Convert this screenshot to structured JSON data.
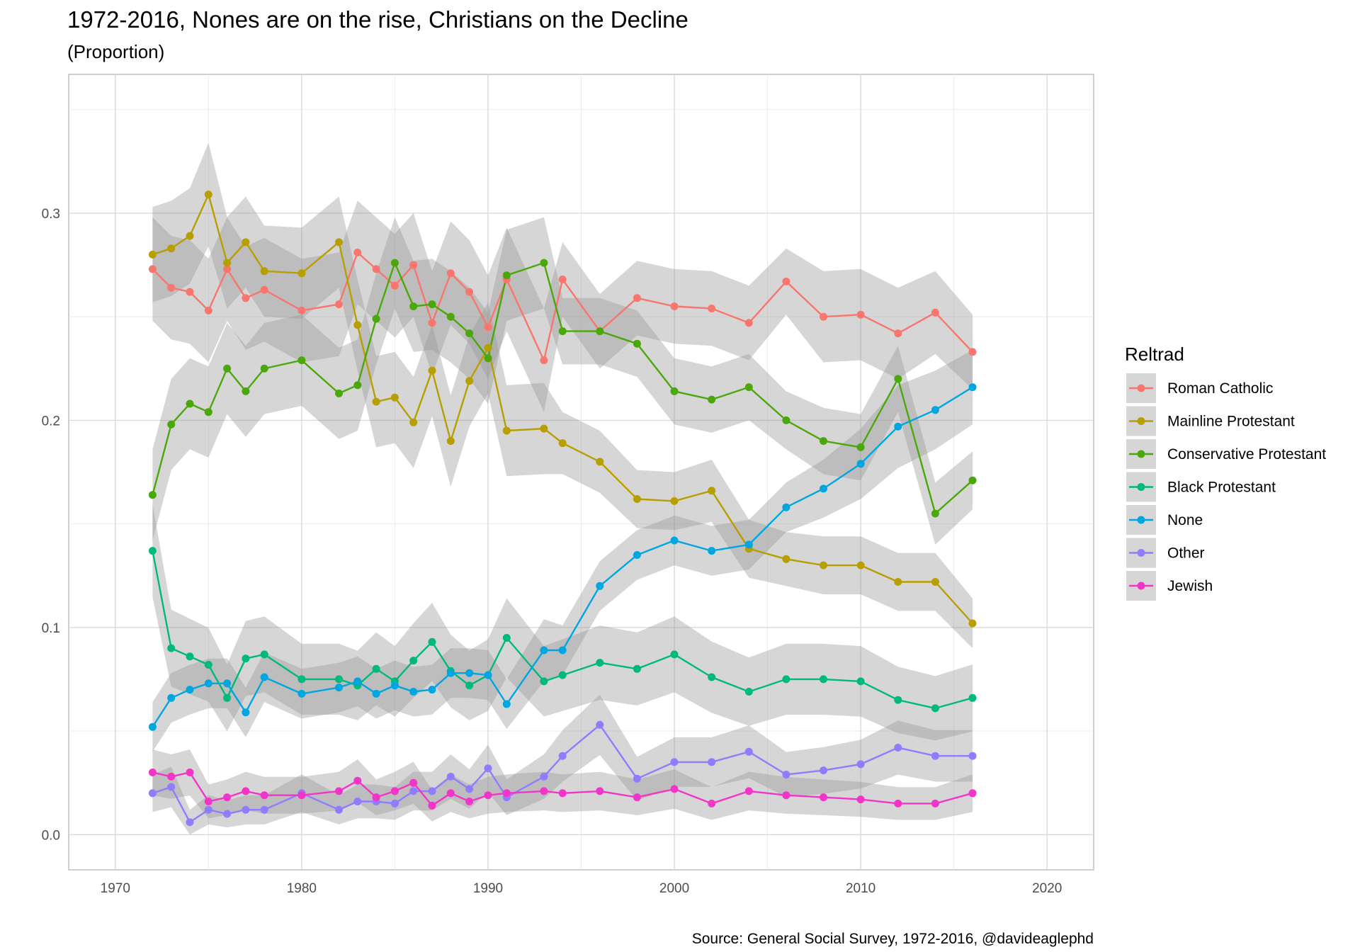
{
  "chart_data": {
    "type": "line",
    "title": "1972-2016, Nones are on the rise, Christians on the Decline",
    "subtitle": "(Proportion)",
    "caption": "Source: General Social Survey, 1972-2016, @davideaglephd",
    "xlabel": "",
    "ylabel": "",
    "xlim": [
      1967.5,
      2022.5
    ],
    "ylim": [
      -0.017,
      0.367
    ],
    "x_ticks": [
      1970,
      1980,
      1990,
      2000,
      2010,
      2020
    ],
    "y_ticks": [
      0.0,
      0.1,
      0.2,
      0.3
    ],
    "x_tick_labels": [
      "1970",
      "1980",
      "1990",
      "2000",
      "2010",
      "2020"
    ],
    "y_tick_labels": [
      "0.0",
      "0.1",
      "0.2",
      "0.3"
    ],
    "grid": true,
    "confidence_band": true,
    "legend_title": "Reltrad",
    "legend_position": "right",
    "x": [
      1972,
      1973,
      1974,
      1975,
      1976,
      1977,
      1978,
      1980,
      1982,
      1983,
      1984,
      1985,
      1986,
      1987,
      1988,
      1989,
      1990,
      1991,
      1993,
      1994,
      1996,
      1998,
      2000,
      2002,
      2004,
      2006,
      2008,
      2010,
      2012,
      2014,
      2016
    ],
    "series": [
      {
        "name": "Roman Catholic",
        "color": "#F8766D",
        "values": [
          0.273,
          0.264,
          0.262,
          0.253,
          0.273,
          0.259,
          0.263,
          0.253,
          0.256,
          0.281,
          0.273,
          0.265,
          0.275,
          0.247,
          0.271,
          0.262,
          0.245,
          0.268,
          0.229,
          0.268,
          0.243,
          0.259,
          0.255,
          0.254,
          0.247,
          0.267,
          0.25,
          0.251,
          0.242,
          0.252,
          0.233
        ],
        "band": [
          0.025,
          0.025,
          0.025,
          0.025,
          0.025,
          0.025,
          0.025,
          0.025,
          0.025,
          0.025,
          0.025,
          0.025,
          0.025,
          0.025,
          0.025,
          0.025,
          0.025,
          0.025,
          0.025,
          0.018,
          0.018,
          0.018,
          0.018,
          0.018,
          0.018,
          0.016,
          0.022,
          0.022,
          0.022,
          0.02,
          0.018
        ]
      },
      {
        "name": "Mainline Protestant",
        "color": "#B79F00",
        "values": [
          0.28,
          0.283,
          0.289,
          0.309,
          0.276,
          0.286,
          0.272,
          0.271,
          0.286,
          0.246,
          0.209,
          0.211,
          0.199,
          0.224,
          0.19,
          0.219,
          0.235,
          0.195,
          0.196,
          0.189,
          0.18,
          0.162,
          0.161,
          0.166,
          0.138,
          0.133,
          0.13,
          0.13,
          0.122,
          0.122,
          0.102
        ],
        "band": [
          0.023,
          0.023,
          0.023,
          0.025,
          0.022,
          0.022,
          0.022,
          0.022,
          0.022,
          0.022,
          0.022,
          0.022,
          0.022,
          0.022,
          0.022,
          0.022,
          0.022,
          0.022,
          0.022,
          0.015,
          0.015,
          0.014,
          0.014,
          0.015,
          0.014,
          0.013,
          0.014,
          0.014,
          0.014,
          0.014,
          0.012
        ]
      },
      {
        "name": "Conservative Protestant",
        "color": "#4BA80B",
        "values": [
          0.164,
          0.198,
          0.208,
          0.204,
          0.225,
          0.214,
          0.225,
          0.229,
          0.213,
          0.217,
          0.249,
          0.276,
          0.255,
          0.256,
          0.25,
          0.242,
          0.23,
          0.27,
          0.276,
          0.243,
          0.243,
          0.237,
          0.214,
          0.21,
          0.216,
          0.2,
          0.19,
          0.187,
          0.22,
          0.155,
          0.171
        ],
        "band": [
          0.022,
          0.022,
          0.022,
          0.022,
          0.022,
          0.022,
          0.022,
          0.022,
          0.022,
          0.022,
          0.022,
          0.022,
          0.022,
          0.022,
          0.022,
          0.022,
          0.022,
          0.022,
          0.022,
          0.016,
          0.016,
          0.016,
          0.016,
          0.016,
          0.016,
          0.014,
          0.016,
          0.016,
          0.016,
          0.015,
          0.014
        ]
      },
      {
        "name": "Black Protestant",
        "color": "#00B97B",
        "values": [
          0.137,
          0.09,
          0.086,
          0.082,
          0.066,
          0.085,
          0.087,
          0.075,
          0.075,
          0.072,
          0.08,
          0.074,
          0.084,
          0.093,
          0.079,
          0.072,
          0.077,
          0.095,
          0.074,
          0.077,
          0.083,
          0.08,
          0.087,
          0.076,
          0.069,
          0.075,
          0.075,
          0.074,
          0.065,
          0.061,
          0.066
        ]
      },
      {
        "name": "None",
        "color": "#00A6E0",
        "values": [
          0.052,
          0.066,
          0.07,
          0.073,
          0.073,
          0.059,
          0.076,
          0.068,
          0.071,
          0.074,
          0.068,
          0.072,
          0.069,
          0.07,
          0.078,
          0.078,
          0.077,
          0.063,
          0.089,
          0.089,
          0.12,
          0.135,
          0.142,
          0.137,
          0.14,
          0.158,
          0.167,
          0.179,
          0.197,
          0.205,
          0.216
        ],
        "band": [
          0.012,
          0.012,
          0.012,
          0.012,
          0.012,
          0.012,
          0.012,
          0.012,
          0.012,
          0.012,
          0.012,
          0.012,
          0.012,
          0.012,
          0.012,
          0.012,
          0.012,
          0.012,
          0.015,
          0.012,
          0.012,
          0.012,
          0.012,
          0.012,
          0.012,
          0.012,
          0.014,
          0.017,
          0.02,
          0.019,
          0.018
        ]
      },
      {
        "name": "Other",
        "color": "#8F7CFF",
        "values": [
          0.02,
          0.023,
          0.006,
          0.012,
          0.01,
          0.012,
          0.012,
          0.02,
          0.012,
          0.016,
          0.016,
          0.015,
          0.021,
          0.021,
          0.028,
          0.022,
          0.032,
          0.018,
          0.028,
          0.038,
          0.053,
          0.027,
          0.035,
          0.035,
          0.04,
          0.029,
          0.031,
          0.034,
          0.042,
          0.038,
          0.038
        ]
      },
      {
        "name": "Jewish",
        "color": "#F235C8",
        "values": [
          0.03,
          0.028,
          0.03,
          0.016,
          0.018,
          0.021,
          0.019,
          0.019,
          0.021,
          0.026,
          0.018,
          0.021,
          0.025,
          0.014,
          0.02,
          0.016,
          0.019,
          0.02,
          0.021,
          0.02,
          0.021,
          0.018,
          0.022,
          0.015,
          0.021,
          0.019,
          0.018,
          0.017,
          0.015,
          0.015,
          0.02
        ]
      }
    ]
  }
}
